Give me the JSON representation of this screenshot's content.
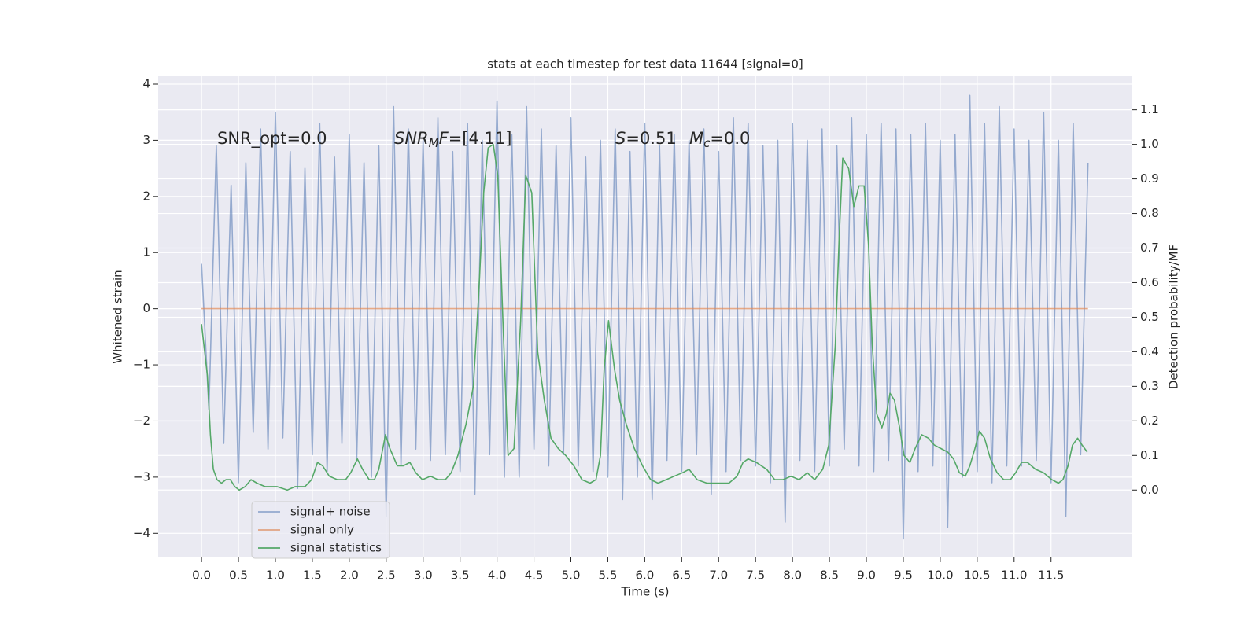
{
  "chart_data": {
    "type": "line",
    "title": "stats at each timestep for test data 11644 [signal=0]",
    "xlabel": "Time (s)",
    "ylabel": "Whitened strain",
    "y2label": "Detection probability/MF",
    "background": "#eaeaf2",
    "grid": true,
    "legend": "lower left",
    "xlim": [
      -0.587,
      12.6
    ],
    "ylim": [
      -4.43,
      4.14
    ],
    "y2lim": [
      -0.195,
      1.197
    ],
    "xticks": [
      {
        "value": 0,
        "label": "0.0"
      },
      {
        "value": 0.5,
        "label": "0.5"
      },
      {
        "value": 1,
        "label": "1.0"
      },
      {
        "value": 1.5,
        "label": "1.5"
      },
      {
        "value": 2,
        "label": "2.0"
      },
      {
        "value": 2.5,
        "label": "2.5"
      },
      {
        "value": 3,
        "label": "3.0"
      },
      {
        "value": 3.5,
        "label": "3.5"
      },
      {
        "value": 4,
        "label": "4.0"
      },
      {
        "value": 4.5,
        "label": "4.5"
      },
      {
        "value": 5,
        "label": "5.0"
      },
      {
        "value": 5.5,
        "label": "5.5"
      },
      {
        "value": 6,
        "label": "6.0"
      },
      {
        "value": 6.5,
        "label": "6.5"
      },
      {
        "value": 7,
        "label": "7.0"
      },
      {
        "value": 7.5,
        "label": "7.5"
      },
      {
        "value": 8,
        "label": "8.0"
      },
      {
        "value": 8.5,
        "label": "8.5"
      },
      {
        "value": 9,
        "label": "9.0"
      },
      {
        "value": 9.5,
        "label": "9.5"
      },
      {
        "value": 10,
        "label": "10.0"
      },
      {
        "value": 10.5,
        "label": "10.5"
      },
      {
        "value": 11,
        "label": "11.0"
      },
      {
        "value": 11.5,
        "label": "11.5"
      }
    ],
    "yticks": [
      {
        "value": -4,
        "label": "−4"
      },
      {
        "value": -3,
        "label": "−3"
      },
      {
        "value": -2,
        "label": "−2"
      },
      {
        "value": -1,
        "label": "−1"
      },
      0,
      1,
      2,
      3,
      4
    ],
    "y2ticks": [
      {
        "value": 0,
        "label": "0.0"
      },
      {
        "value": 0.1,
        "label": "0.1"
      },
      {
        "value": 0.2,
        "label": "0.2"
      },
      {
        "value": 0.3,
        "label": "0.3"
      },
      {
        "value": 0.4,
        "label": "0.4"
      },
      {
        "value": 0.5,
        "label": "0.5"
      },
      {
        "value": 0.6,
        "label": "0.6"
      },
      {
        "value": 0.7,
        "label": "0.7"
      },
      {
        "value": 0.8,
        "label": "0.8"
      },
      {
        "value": 0.9,
        "label": "0.9"
      },
      {
        "value": 1,
        "label": "1.0"
      },
      {
        "value": 1.1,
        "label": "1.1"
      }
    ],
    "annotations": [
      [
        {
          "text": "SNR_opt=0.0"
        }
      ],
      [
        {
          "text": "SNR",
          "italic": true
        },
        {
          "text": "M",
          "italic": true,
          "sub": true
        },
        {
          "text": "F",
          "italic": true
        },
        {
          "text": "=[4.11]"
        }
      ],
      [
        {
          "text": "S",
          "italic": true
        },
        {
          "text": "=0.51"
        }
      ],
      [
        {
          "text": "M",
          "italic": true
        },
        {
          "text": "c",
          "italic": true,
          "sub": true
        },
        {
          "text": "=0.0"
        }
      ]
    ],
    "series": [
      {
        "name": "signal+ noise",
        "color": "#4c72b0",
        "opacity": 0.55,
        "x": [
          0,
          0.1,
          0.2,
          0.3,
          0.4,
          0.5,
          0.6,
          0.7,
          0.8,
          0.9,
          1,
          1.1,
          1.2,
          1.3,
          1.4,
          1.5,
          1.6,
          1.7,
          1.8,
          1.9,
          2,
          2.1,
          2.2,
          2.3,
          2.4,
          2.5,
          2.6,
          2.7,
          2.8,
          2.9,
          3,
          3.1,
          3.2,
          3.3,
          3.4,
          3.5,
          3.6,
          3.7,
          3.8,
          3.9,
          4,
          4.1,
          4.2,
          4.3,
          4.4,
          4.5,
          4.6,
          4.7,
          4.8,
          4.9,
          5,
          5.1,
          5.2,
          5.3,
          5.4,
          5.5,
          5.6,
          5.7,
          5.8,
          5.9,
          6,
          6.1,
          6.2,
          6.3,
          6.4,
          6.5,
          6.6,
          6.7,
          6.8,
          6.9,
          7,
          7.1,
          7.2,
          7.3,
          7.4,
          7.5,
          7.6,
          7.7,
          7.8,
          7.9,
          8,
          8.1,
          8.2,
          8.3,
          8.4,
          8.5,
          8.6,
          8.7,
          8.8,
          8.9,
          9,
          9.1,
          9.2,
          9.3,
          9.4,
          9.5,
          9.6,
          9.7,
          9.8,
          9.9,
          10,
          10.1,
          10.2,
          10.3,
          10.4,
          10.5,
          10.6,
          10.7,
          10.8,
          10.9,
          11,
          11.1,
          11.2,
          11.3,
          11.4,
          11.5,
          11.6,
          11.7,
          11.8,
          11.9,
          12
        ],
        "values": [
          0.8,
          -1.8,
          2.9,
          -2.4,
          2.2,
          -3.1,
          2.6,
          -2.2,
          3.2,
          -2.5,
          3.5,
          -2.3,
          2.8,
          -3.2,
          2.5,
          -2.6,
          3.3,
          -2.9,
          2.7,
          -2.4,
          3.1,
          -2.7,
          2.6,
          -3.0,
          2.9,
          -3.7,
          3.6,
          -2.8,
          3.2,
          -2.5,
          3.0,
          -2.7,
          3.4,
          -2.6,
          2.8,
          -2.9,
          3.3,
          -3.3,
          3.0,
          -2.6,
          3.7,
          -3.0,
          3.1,
          -3.0,
          3.6,
          -2.5,
          3.2,
          -2.8,
          2.9,
          -2.6,
          3.4,
          -2.8,
          2.7,
          -2.9,
          3.0,
          -3.0,
          3.2,
          -3.4,
          2.8,
          -3.0,
          3.3,
          -3.4,
          2.9,
          -2.7,
          3.1,
          -2.9,
          3.0,
          -2.6,
          3.2,
          -3.3,
          2.8,
          -2.9,
          3.4,
          -2.7,
          3.3,
          -2.8,
          2.9,
          -3.1,
          3.0,
          -3.8,
          3.3,
          -2.7,
          3.0,
          -2.9,
          3.2,
          -2.8,
          2.9,
          -2.5,
          3.4,
          -2.8,
          3.1,
          -2.9,
          3.3,
          -2.7,
          3.2,
          -4.1,
          3.1,
          -2.9,
          3.3,
          -2.8,
          3.0,
          -3.9,
          3.1,
          -3.0,
          3.8,
          -2.9,
          3.3,
          -3.1,
          3.6,
          -2.8,
          3.2,
          -2.8,
          3.0,
          -2.7,
          3.5,
          -3.1,
          3.0,
          -3.7,
          3.3,
          -2.6,
          2.6
        ]
      },
      {
        "name": "signal only",
        "color": "#dd8452",
        "opacity": 0.7,
        "x": [
          0,
          12
        ],
        "values": [
          0,
          0
        ]
      },
      {
        "name": "signal statistics",
        "color": "#55a868",
        "opacity": 1,
        "axis": "y2",
        "x": [
          0,
          0.08,
          0.12,
          0.16,
          0.21,
          0.27,
          0.33,
          0.39,
          0.45,
          0.51,
          0.59,
          0.67,
          0.75,
          0.86,
          1.02,
          1.16,
          1.27,
          1.4,
          1.49,
          1.57,
          1.64,
          1.73,
          1.84,
          1.95,
          2.02,
          2.11,
          2.18,
          2.27,
          2.34,
          2.4,
          2.49,
          2.55,
          2.65,
          2.73,
          2.82,
          2.9,
          2.99,
          3.1,
          3.2,
          3.3,
          3.38,
          3.47,
          3.58,
          3.68,
          3.75,
          3.82,
          3.88,
          3.95,
          4.01,
          4.08,
          4.15,
          4.23,
          4.32,
          4.39,
          4.47,
          4.55,
          4.64,
          4.73,
          4.83,
          4.93,
          5.04,
          5.15,
          5.26,
          5.34,
          5.4,
          5.45,
          5.51,
          5.59,
          5.66,
          5.75,
          5.86,
          5.97,
          6.08,
          6.18,
          6.29,
          6.4,
          6.51,
          6.6,
          6.71,
          6.84,
          7.0,
          7.14,
          7.25,
          7.33,
          7.4,
          7.51,
          7.65,
          7.76,
          7.87,
          7.98,
          8.09,
          8.2,
          8.3,
          8.41,
          8.49,
          8.58,
          8.63,
          8.68,
          8.76,
          8.83,
          8.9,
          8.97,
          9.03,
          9.08,
          9.14,
          9.21,
          9.27,
          9.32,
          9.38,
          9.45,
          9.51,
          9.59,
          9.66,
          9.75,
          9.84,
          9.92,
          10.01,
          10.1,
          10.18,
          10.26,
          10.34,
          10.4,
          10.47,
          10.53,
          10.6,
          10.68,
          10.77,
          10.86,
          10.95,
          11.02,
          11.1,
          11.18,
          11.29,
          11.4,
          11.51,
          11.6,
          11.66,
          11.73,
          11.79,
          11.86,
          11.92,
          11.99
        ],
        "values": [
          0.48,
          0.33,
          0.16,
          0.06,
          0.03,
          0.02,
          0.03,
          0.03,
          0.01,
          0.0,
          0.01,
          0.03,
          0.02,
          0.01,
          0.01,
          0.0,
          0.01,
          0.01,
          0.03,
          0.08,
          0.07,
          0.04,
          0.03,
          0.03,
          0.05,
          0.09,
          0.06,
          0.03,
          0.03,
          0.06,
          0.16,
          0.12,
          0.07,
          0.07,
          0.08,
          0.05,
          0.03,
          0.04,
          0.03,
          0.03,
          0.05,
          0.1,
          0.19,
          0.3,
          0.56,
          0.86,
          0.99,
          1.0,
          0.91,
          0.49,
          0.1,
          0.12,
          0.49,
          0.91,
          0.86,
          0.4,
          0.26,
          0.15,
          0.12,
          0.1,
          0.07,
          0.03,
          0.02,
          0.03,
          0.1,
          0.35,
          0.49,
          0.35,
          0.26,
          0.19,
          0.12,
          0.07,
          0.03,
          0.02,
          0.03,
          0.04,
          0.05,
          0.06,
          0.03,
          0.02,
          0.02,
          0.02,
          0.04,
          0.08,
          0.09,
          0.08,
          0.06,
          0.03,
          0.03,
          0.04,
          0.03,
          0.05,
          0.03,
          0.06,
          0.13,
          0.42,
          0.72,
          0.96,
          0.93,
          0.82,
          0.88,
          0.88,
          0.71,
          0.42,
          0.22,
          0.18,
          0.22,
          0.28,
          0.26,
          0.18,
          0.1,
          0.08,
          0.12,
          0.16,
          0.15,
          0.13,
          0.12,
          0.11,
          0.09,
          0.05,
          0.04,
          0.07,
          0.12,
          0.17,
          0.15,
          0.09,
          0.05,
          0.03,
          0.03,
          0.05,
          0.08,
          0.08,
          0.06,
          0.05,
          0.03,
          0.02,
          0.03,
          0.07,
          0.13,
          0.15,
          0.13,
          0.11
        ]
      }
    ]
  }
}
